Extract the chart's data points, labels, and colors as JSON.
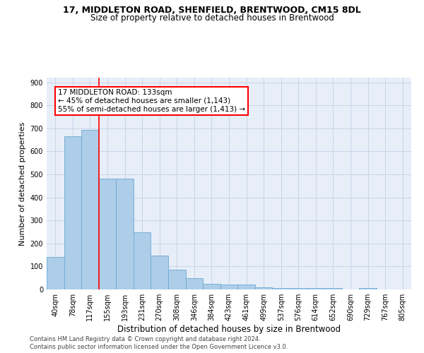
{
  "title1": "17, MIDDLETON ROAD, SHENFIELD, BRENTWOOD, CM15 8DL",
  "title2": "Size of property relative to detached houses in Brentwood",
  "xlabel": "Distribution of detached houses by size in Brentwood",
  "ylabel": "Number of detached properties",
  "footnote1": "Contains HM Land Registry data © Crown copyright and database right 2024.",
  "footnote2": "Contains public sector information licensed under the Open Government Licence v3.0.",
  "bar_labels": [
    "40sqm",
    "78sqm",
    "117sqm",
    "155sqm",
    "193sqm",
    "231sqm",
    "270sqm",
    "308sqm",
    "346sqm",
    "384sqm",
    "423sqm",
    "461sqm",
    "499sqm",
    "537sqm",
    "576sqm",
    "614sqm",
    "652sqm",
    "690sqm",
    "729sqm",
    "767sqm",
    "805sqm"
  ],
  "bar_values": [
    140,
    667,
    693,
    483,
    483,
    247,
    148,
    85,
    50,
    25,
    20,
    20,
    10,
    7,
    5,
    5,
    5,
    0,
    5,
    0,
    0
  ],
  "bar_color": "#aecde8",
  "bar_edge_color": "#6aaad4",
  "annotation_text": "17 MIDDLETON ROAD: 133sqm\n← 45% of detached houses are smaller (1,143)\n55% of semi-detached houses are larger (1,413) →",
  "annotation_box_color": "white",
  "annotation_box_edge": "red",
  "property_line_color": "red",
  "grid_color": "#c8d4e8",
  "bg_color": "#e8eef8",
  "ylim": [
    0,
    920
  ],
  "yticks": [
    0,
    100,
    200,
    300,
    400,
    500,
    600,
    700,
    800,
    900
  ],
  "title1_fontsize": 9,
  "title2_fontsize": 8.5,
  "ylabel_fontsize": 8,
  "xlabel_fontsize": 8.5,
  "tick_fontsize": 7,
  "footnote_fontsize": 6,
  "annotation_fontsize": 7.5
}
